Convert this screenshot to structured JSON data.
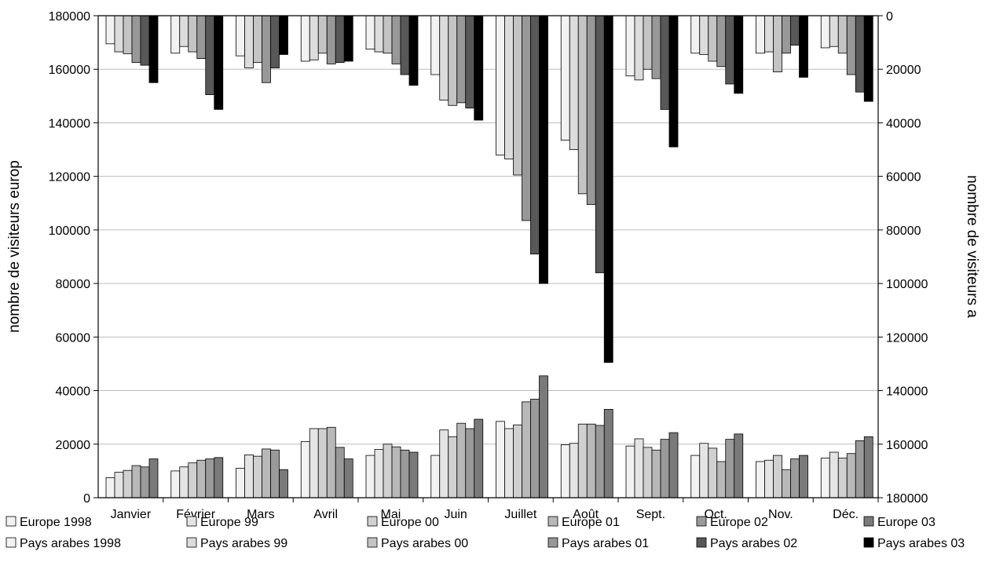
{
  "chart_data": {
    "type": "bar",
    "categories": [
      "Janvier",
      "Février",
      "Mars",
      "Avril",
      "Mai",
      "Juin",
      "Juillet",
      "Août",
      "Sept.",
      "Oct.",
      "Nov.",
      "Déc."
    ],
    "ylabel_left": "nombre de visiteurs europ",
    "ylabel_right": "nombre de visiteurs a",
    "y_left": {
      "lim": [
        0,
        180000
      ],
      "ticks": [
        "0",
        "20000",
        "40000",
        "60000",
        "80000",
        "100000",
        "120000",
        "140000",
        "160000",
        "180000"
      ]
    },
    "y_right": {
      "lim": [
        0,
        180000
      ],
      "reversed": true,
      "ticks": [
        "0",
        "20000",
        "40000",
        "60000",
        "80000",
        "100000",
        "120000",
        "140000",
        "160000",
        "180000"
      ]
    },
    "grid": true,
    "legend_placement": "bottom",
    "series": [
      {
        "name": "Europe 1998",
        "axis": "left",
        "color": "#f2f2f2",
        "values": [
          7500,
          10000,
          11000,
          21000,
          15800,
          15800,
          28500,
          19800,
          19300,
          15800,
          13500,
          14800
        ]
      },
      {
        "name": "Europe 99",
        "axis": "left",
        "color": "#e4e4e4",
        "values": [
          9500,
          11500,
          16000,
          25800,
          18000,
          25300,
          25800,
          20300,
          22000,
          20300,
          14000,
          17000
        ]
      },
      {
        "name": "Europe 00",
        "axis": "left",
        "color": "#d0d0d0",
        "values": [
          10200,
          13000,
          15500,
          25800,
          20000,
          22800,
          27200,
          27500,
          18800,
          18500,
          15800,
          14800
        ]
      },
      {
        "name": "Europe 01",
        "axis": "left",
        "color": "#b8b8b8",
        "values": [
          12000,
          14000,
          18200,
          26300,
          19000,
          27800,
          35800,
          27500,
          17800,
          13500,
          10500,
          16500
        ]
      },
      {
        "name": "Europe 02",
        "axis": "left",
        "color": "#9a9a9a",
        "values": [
          11500,
          14500,
          17800,
          18800,
          17800,
          25800,
          36800,
          27000,
          21800,
          21800,
          14500,
          21300
        ]
      },
      {
        "name": "Europe 03",
        "axis": "left",
        "color": "#7a7a7a",
        "values": [
          14500,
          15000,
          10500,
          14500,
          17000,
          29300,
          45500,
          33000,
          24300,
          23800,
          15800,
          22800
        ]
      },
      {
        "name": "Pays arabes 1998",
        "axis": "right",
        "color": "#f2f2f2",
        "values": [
          10500,
          14000,
          15000,
          17000,
          12500,
          22000,
          52000,
          46500,
          22500,
          14000,
          14000,
          12000
        ]
      },
      {
        "name": "Pays arabes 99",
        "axis": "right",
        "color": "#dcdcdc",
        "values": [
          13500,
          11500,
          19500,
          16500,
          13500,
          31500,
          53500,
          50000,
          24000,
          14500,
          13500,
          11500
        ]
      },
      {
        "name": "Pays arabes 00",
        "axis": "right",
        "color": "#c4c4c4",
        "values": [
          14200,
          13500,
          17500,
          14000,
          14000,
          33500,
          59500,
          66500,
          20000,
          17000,
          21000,
          14000
        ]
      },
      {
        "name": "Pays arabes 01",
        "axis": "right",
        "color": "#989898",
        "values": [
          17500,
          16000,
          25000,
          18000,
          18000,
          32500,
          76500,
          70500,
          23500,
          19000,
          14000,
          22000
        ]
      },
      {
        "name": "Pays arabes 02",
        "axis": "right",
        "color": "#585858",
        "values": [
          18500,
          29500,
          19500,
          17500,
          22000,
          34500,
          89000,
          96000,
          35000,
          25500,
          11000,
          28500
        ]
      },
      {
        "name": "Pays arabes 03",
        "axis": "right",
        "color": "#000000",
        "values": [
          25000,
          35000,
          14500,
          17000,
          26000,
          39000,
          100000,
          129500,
          49000,
          29000,
          23000,
          32000
        ]
      }
    ]
  }
}
